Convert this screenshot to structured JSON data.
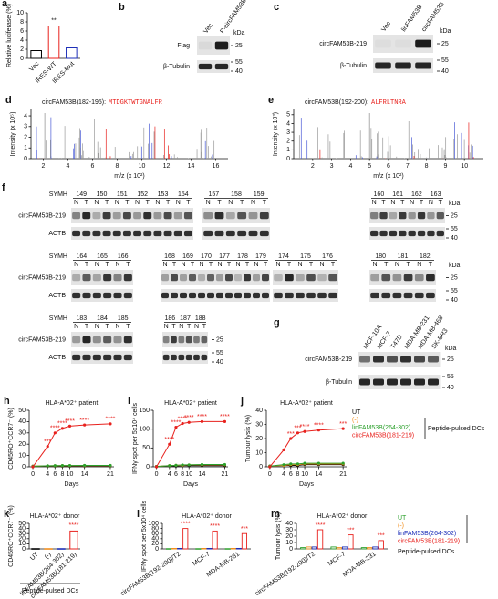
{
  "chart_data": [
    {
      "panel": "a",
      "type": "bar",
      "y_label": "Relative luciferase (%)",
      "categories": [
        "Vec",
        "IRES-WT",
        "IRES-Mut"
      ],
      "values": [
        1.7,
        7.1,
        2.3
      ],
      "colors": [
        "#000000",
        "#e8211d",
        "#1d2fb8"
      ],
      "significance": [
        null,
        "**",
        null
      ],
      "ylim": [
        0,
        10
      ],
      "yticks": [
        0,
        2,
        4,
        6,
        8,
        10
      ]
    },
    {
      "panel": "d",
      "type": "spectrum",
      "title": "circFAM53B(182-195):",
      "peptide": "MTDGKTWTGNALFR",
      "x_label": "m/z (x 10²)",
      "y_label": "Intensity (x 10⁵)",
      "xlim": [
        1,
        17
      ],
      "xticks": [
        2,
        4,
        6,
        8,
        10,
        12,
        14,
        16
      ],
      "ylim": [
        0,
        4.6
      ],
      "yticks": [
        0,
        1,
        2,
        3,
        4
      ]
    },
    {
      "panel": "e",
      "type": "spectrum",
      "title": "circFAM53B(192-200):",
      "peptide": "ALFRLTNRA",
      "x_label": "m/z (x 10²)",
      "y_label": "Intensity (x 10³)",
      "xlim": [
        1,
        11
      ],
      "xticks": [
        2,
        3,
        4,
        5,
        6,
        7,
        8,
        9,
        10
      ],
      "ylim": [
        0,
        5.6
      ],
      "yticks": [
        0,
        1,
        2,
        3,
        4,
        5
      ]
    },
    {
      "panel": "h",
      "type": "line",
      "title": "HLA-A*02⁺ patient",
      "y_label": "CD45RO⁺CCR7⁻ (%)",
      "x_label": "Days",
      "x": [
        0,
        4,
        6,
        8,
        10,
        14,
        21
      ],
      "xlim": [
        -1,
        22
      ],
      "xticks": [
        0,
        4,
        6,
        8,
        10,
        14,
        21
      ],
      "ylim": [
        0,
        50
      ],
      "yticks": [
        0,
        10,
        20,
        30,
        40,
        50
      ],
      "series": [
        {
          "name": "UT",
          "color": "#000000",
          "values": [
            0.5,
            0.5,
            0.6,
            0.6,
            0.6,
            0.7,
            0.7
          ]
        },
        {
          "name": "(-)",
          "color": "#f28e1c",
          "values": [
            0.5,
            0.8,
            0.9,
            1,
            1,
            1,
            1
          ]
        },
        {
          "name": "linFAM53B(264-302)",
          "color": "#2ca02c",
          "values": [
            0.5,
            0.9,
            1,
            1.1,
            1.1,
            1.2,
            1.2
          ]
        },
        {
          "name": "circFAM53B(181-219)",
          "color": "#e8211d",
          "values": [
            0,
            18,
            30,
            34,
            36,
            37,
            38
          ],
          "significance": [
            null,
            "***",
            "****",
            "****",
            "****",
            "****",
            "****"
          ]
        }
      ]
    },
    {
      "panel": "i",
      "type": "line",
      "title": "HLA-A*02⁺ patient",
      "y_label": "IFNγ spot per 5x10⁴ cells",
      "x_label": "Days",
      "x": [
        0,
        4,
        6,
        8,
        10,
        14,
        21
      ],
      "xlim": [
        -1,
        22
      ],
      "xticks": [
        0,
        4,
        6,
        8,
        10,
        14,
        21
      ],
      "ylim": [
        0,
        150
      ],
      "yticks": [
        0,
        50,
        100,
        150
      ],
      "series": [
        {
          "name": "UT",
          "color": "#000000",
          "values": [
            1,
            2,
            2,
            3,
            3,
            3,
            3
          ]
        },
        {
          "name": "(-)",
          "color": "#f28e1c",
          "values": [
            1,
            3,
            4,
            4,
            5,
            5,
            5
          ]
        },
        {
          "name": "linFAM53B(264-302)",
          "color": "#2ca02c",
          "values": [
            1,
            3,
            4,
            5,
            5,
            6,
            6
          ]
        },
        {
          "name": "circFAM53B(181-219)",
          "color": "#e8211d",
          "values": [
            0,
            60,
            105,
            115,
            118,
            120,
            120
          ],
          "significance": [
            null,
            "****",
            "****",
            "****",
            "****",
            "****",
            "****"
          ]
        }
      ]
    },
    {
      "panel": "j",
      "type": "line",
      "title": "HLA-A*02⁺ patient",
      "y_label": "Tumour lysis (%)",
      "x_label": "Days",
      "x": [
        0,
        4,
        6,
        8,
        10,
        14,
        21
      ],
      "xlim": [
        -1,
        22
      ],
      "xticks": [
        0,
        4,
        6,
        8,
        10,
        14,
        21
      ],
      "ylim": [
        0,
        40
      ],
      "yticks": [
        0,
        10,
        20,
        30,
        40
      ],
      "legend": true,
      "legend_title": "Peptide-pulsed DCs",
      "series": [
        {
          "name": "UT",
          "color": "#000000",
          "values": [
            0.5,
            1,
            1,
            1,
            1.5,
            1.5,
            1.5
          ]
        },
        {
          "name": "(-)",
          "color": "#f28e1c",
          "values": [
            0.5,
            1,
            1.5,
            1.5,
            2,
            2,
            2
          ]
        },
        {
          "name": "linFAM53B(264-302)",
          "color": "#2ca02c",
          "values": [
            0.5,
            1.5,
            2,
            2,
            2.5,
            2.5,
            2.5
          ]
        },
        {
          "name": "circFAM53B(181-219)",
          "color": "#e8211d",
          "values": [
            0,
            12,
            20,
            24,
            25,
            26,
            27
          ],
          "significance": [
            null,
            null,
            "***",
            "***",
            "****",
            "****",
            "***"
          ]
        }
      ]
    },
    {
      "panel": "k",
      "type": "bar",
      "title": "HLA-A*02⁺ donor",
      "y_label": "CD45RO⁺CCR7⁻ (%)",
      "categories": [
        "UT",
        "(-)",
        "linFAM53B(264-302)",
        "circFAM53B(181-219)"
      ],
      "values": [
        0.5,
        0.5,
        0.5,
        35
      ],
      "colors": [
        "#000000",
        "#f28e1c",
        "#1d2fb8",
        "#e8211d"
      ],
      "significance": [
        null,
        null,
        null,
        "****"
      ],
      "group_label": "Peptide-pulsed DCs",
      "ylim": [
        0,
        50
      ],
      "yticks": [
        0,
        10,
        20,
        30,
        40,
        50
      ]
    },
    {
      "panel": "l",
      "type": "grouped_bar",
      "title": "HLA-A*02⁺ donor",
      "y_label": "IFNγ spot per 5x10⁴ cells",
      "categories": [
        "circFAM53B(192-200)/T2",
        "MCF-7",
        "MDA-MB-231"
      ],
      "ylim": [
        0,
        100
      ],
      "yticks": [
        0,
        20,
        40,
        60,
        80,
        100
      ],
      "series": [
        {
          "name": "UT",
          "color": "#2ca02c",
          "values": [
            1,
            1,
            1
          ]
        },
        {
          "name": "(-)",
          "color": "#f28e1c",
          "values": [
            2,
            2,
            2
          ]
        },
        {
          "name": "linFAM53B(264-302)",
          "color": "#1d2fb8",
          "values": [
            2,
            2,
            2
          ]
        },
        {
          "name": "circFAM53B(181-219)",
          "color": "#e8211d",
          "values": [
            80,
            70,
            60
          ],
          "significance": [
            "****",
            "****",
            "***"
          ]
        }
      ]
    },
    {
      "panel": "m",
      "type": "grouped_bar",
      "title": "HLA-A*02⁺ donor",
      "y_label": "Tumour lysis (%)",
      "categories": [
        "circFAM53B(192-200)/T2",
        "MCF-7",
        "MDA-MB-231"
      ],
      "ylim": [
        0,
        40
      ],
      "yticks": [
        0,
        10,
        20,
        30,
        40
      ],
      "legend": true,
      "legend_title": "Peptide-pulsed DCs",
      "series": [
        {
          "name": "UT",
          "color": "#2ca02c",
          "values": [
            2,
            3,
            2
          ]
        },
        {
          "name": "(-)",
          "color": "#f28e1c",
          "values": [
            3,
            2,
            2
          ]
        },
        {
          "name": "linFAM53B(264-302)",
          "color": "#1d2fb8",
          "values": [
            3,
            3,
            3
          ]
        },
        {
          "name": "circFAM53B(181-219)",
          "color": "#e8211d",
          "values": [
            30,
            22,
            13
          ],
          "significance": [
            "****",
            "***",
            "***"
          ]
        }
      ]
    }
  ],
  "blots": [
    {
      "panel": "b",
      "lanes": [
        "Vec",
        "P-circFAM53B"
      ],
      "rows": [
        "Flag",
        "β-Tubulin"
      ],
      "kda": "kDa",
      "markers": [
        25,
        55,
        40
      ]
    },
    {
      "panel": "c",
      "lanes": [
        "Vec",
        "linFAM53B",
        "circFAM53B"
      ],
      "rows": [
        "circFAM53B-219",
        "β-Tubulin"
      ],
      "kda": "kDa",
      "markers": [
        25,
        55,
        40
      ]
    },
    {
      "panel": "f",
      "label": "SYMH",
      "lanes": [
        "N",
        "T"
      ],
      "rows": [
        "circFAM53B-219",
        "ACTB"
      ],
      "kda": "kDa",
      "markers": [
        25,
        55,
        40
      ],
      "blocks": [
        [
          [
            149,
            150,
            151,
            152,
            153,
            154
          ],
          [
            157,
            158,
            159
          ],
          [
            160,
            161,
            162,
            163
          ]
        ],
        [
          [
            164,
            165,
            166
          ],
          [
            168,
            169,
            170,
            177,
            178,
            179
          ],
          [
            174,
            175,
            176
          ],
          [
            180,
            181,
            182
          ]
        ],
        [
          [
            183,
            184,
            185
          ],
          [
            186,
            187,
            188
          ]
        ]
      ]
    },
    {
      "panel": "g",
      "lanes": [
        "MCF-10A",
        "MCF-7",
        "T47D",
        "MDA-MB-231",
        "MDA-MB-468",
        "SK-BR3"
      ],
      "rows": [
        "circFAM53B-219",
        "β-Tubulin"
      ],
      "kda": "kDa",
      "markers": [
        25,
        55,
        40
      ]
    }
  ]
}
